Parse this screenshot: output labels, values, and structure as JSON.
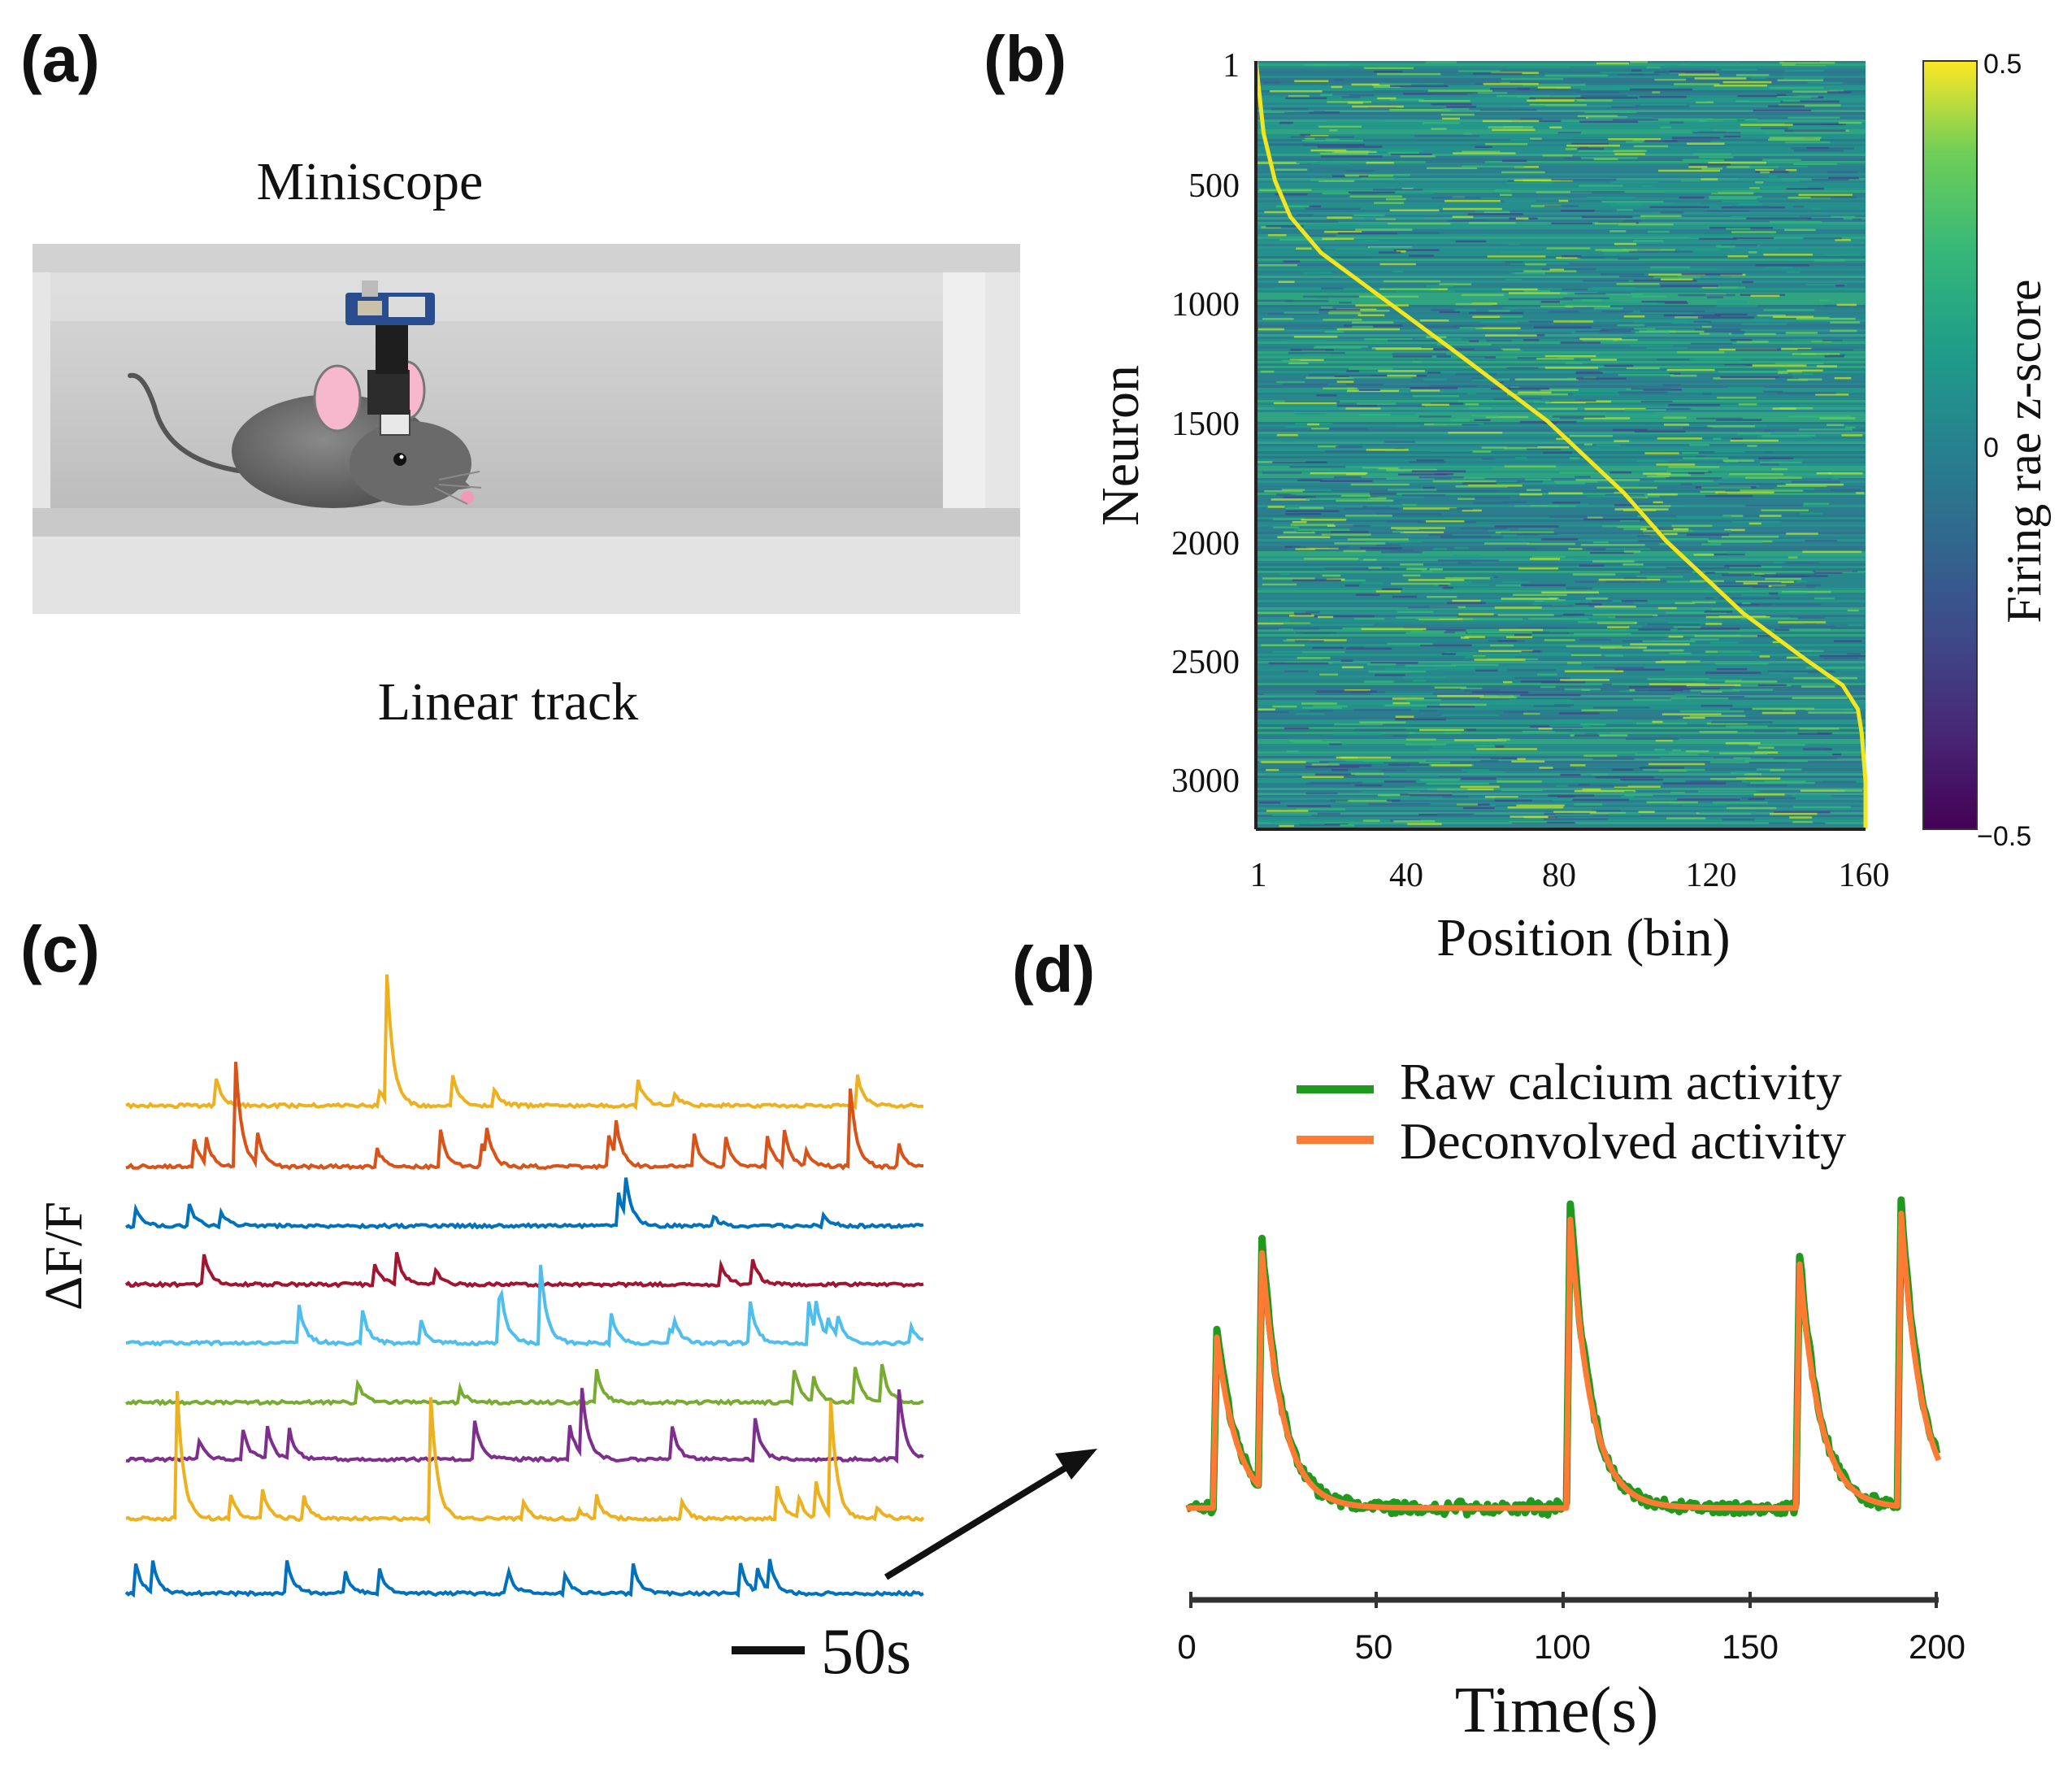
{
  "panels": {
    "a": {
      "label": "(a)",
      "top_caption": "Miniscope",
      "bottom_caption": "Linear track"
    },
    "b": {
      "label": "(b)",
      "ylabel": "Neuron",
      "xlabel": "Position (bin)",
      "colorbar_label": "Firing rae z-score",
      "yticks": [
        "1",
        "500",
        "1000",
        "1500",
        "2000",
        "2500",
        "3000"
      ],
      "xticks": [
        "1",
        "40",
        "80",
        "120",
        "160"
      ],
      "colorbar_ticks": [
        "0.5",
        "0",
        "−0.5"
      ]
    },
    "c": {
      "label": "(c)",
      "ylabel": "ΔF/F",
      "scalebar_label": "50s"
    },
    "d": {
      "label": "(d)",
      "xlabel": "Time(s)",
      "xticks": [
        "0",
        "50",
        "100",
        "150",
        "200"
      ],
      "legend": [
        "Raw calcium activity",
        "Deconvolved activity"
      ]
    }
  },
  "colors": {
    "raw": "#1f9a1f",
    "deconvolved": "#ff7a33",
    "traces": [
      "#edb120",
      "#d95319",
      "#0072bd",
      "#a2142f",
      "#4dbeee",
      "#77ac30",
      "#7e2f8e",
      "#edb120",
      "#0072bd"
    ]
  },
  "chart_data": [
    {
      "type": "heatmap",
      "title": "",
      "xlabel": "Position (bin)",
      "ylabel": "Neuron",
      "xlim": [
        1,
        160
      ],
      "ylim": [
        1,
        3200
      ],
      "color_scale": "viridis",
      "zlim": [
        -0.5,
        0.5
      ],
      "colorbar_label": "Firing rae z-score",
      "peak_curve": {
        "neuron": [
          1,
          300,
          500,
          650,
          800,
          1000,
          1200,
          1500,
          1800,
          2000,
          2300,
          2500,
          2600,
          2700,
          2800,
          3000,
          3200
        ],
        "position_bin": [
          1,
          3,
          6,
          10,
          18,
          35,
          52,
          77,
          97,
          108,
          128,
          145,
          154,
          158,
          159,
          160,
          160
        ]
      }
    },
    {
      "type": "line",
      "title": "",
      "xlabel": "Time(s)",
      "ylabel": "",
      "xlim": [
        0,
        200
      ],
      "series": [
        {
          "name": "Raw calcium activity",
          "peaks_s": [
            8,
            20,
            102,
            163,
            190
          ]
        },
        {
          "name": "Deconvolved activity",
          "peaks_s": [
            8,
            20,
            102,
            163,
            190
          ]
        }
      ]
    },
    {
      "type": "line",
      "title": "",
      "ylabel": "ΔF/F",
      "scalebar": "50s",
      "series_count": 9
    }
  ]
}
